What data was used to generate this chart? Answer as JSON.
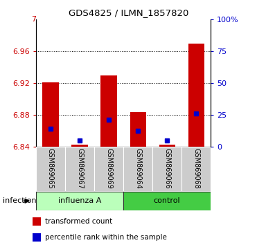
{
  "title": "GDS4825 / ILMN_1857820",
  "samples": [
    "GSM869065",
    "GSM869067",
    "GSM869069",
    "GSM869064",
    "GSM869066",
    "GSM869068"
  ],
  "group_labels": [
    "influenza A",
    "control"
  ],
  "bar_bottom": 6.84,
  "red_tops": [
    6.921,
    6.843,
    6.93,
    6.884,
    6.843,
    6.97
  ],
  "blue_values": [
    6.863,
    6.848,
    6.874,
    6.86,
    6.848,
    6.882
  ],
  "ylim_left": [
    6.84,
    7.0
  ],
  "ylim_right": [
    0,
    100
  ],
  "yticks_left": [
    6.84,
    6.88,
    6.92,
    6.96
  ],
  "ytick_top_label": "7",
  "yticks_right": [
    0,
    25,
    50,
    75,
    100
  ],
  "right_tick_labels": [
    "0",
    "25",
    "50",
    "75",
    "100%"
  ],
  "bar_color": "#cc0000",
  "blue_color": "#0000cc",
  "bar_width": 0.55,
  "left_tick_color": "#cc0000",
  "right_tick_color": "#0000cc",
  "factor_label": "infection",
  "sample_bg_color": "#cccccc",
  "influenza_color": "#bbffbb",
  "control_color": "#44cc44",
  "legend_red_label": "transformed count",
  "legend_blue_label": "percentile rank within the sample"
}
